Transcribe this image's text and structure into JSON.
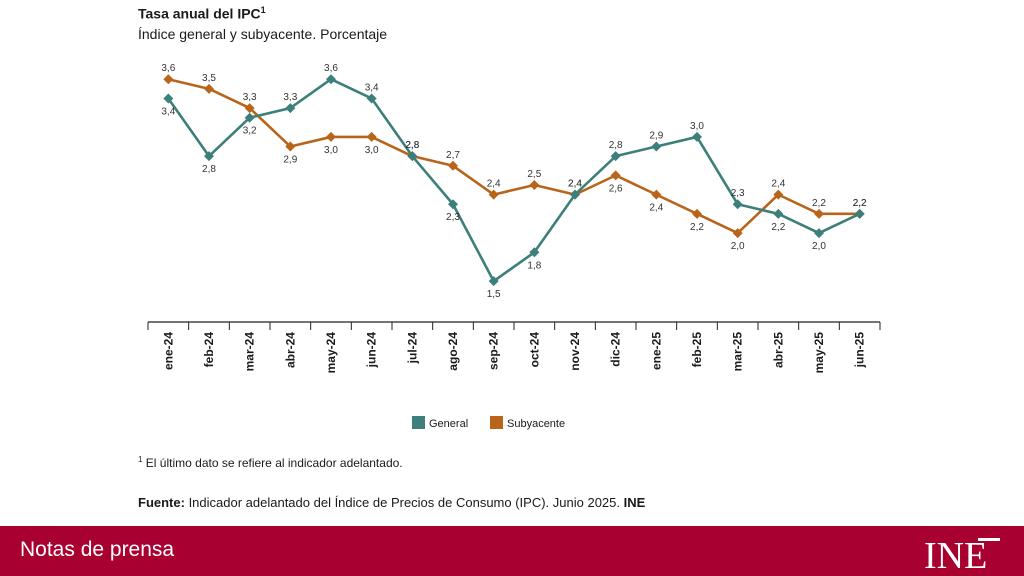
{
  "chart_data": {
    "type": "line",
    "title": "Tasa anual del IPC",
    "title_superscript": "1",
    "subtitle": "Índice general y subyacente. Porcentaje",
    "categories": [
      "ene-24",
      "feb-24",
      "mar-24",
      "abr-24",
      "may-24",
      "jun-24",
      "jul-24",
      "ago-24",
      "sep-24",
      "oct-24",
      "nov-24",
      "dic-24",
      "ene-25",
      "feb-25",
      "mar-25",
      "abr-25",
      "may-25",
      "jun-25"
    ],
    "series": [
      {
        "name": "General",
        "color": "#3d7f7a",
        "marker": "diamond",
        "values": [
          3.4,
          2.8,
          3.2,
          3.3,
          3.6,
          3.4,
          2.8,
          2.3,
          1.5,
          1.8,
          2.4,
          2.8,
          2.9,
          3.0,
          2.3,
          2.2,
          2.0,
          2.2
        ],
        "labels": [
          "3,4",
          "2,8",
          "3,2",
          "3,3",
          "3,6",
          "3,4",
          "2,8",
          "2,3",
          "1,5",
          "1,8",
          "2,4",
          "2,8",
          "2,9",
          "3,0",
          "2,3",
          "2,2",
          "2,0",
          "2,2"
        ]
      },
      {
        "name": "Subyacente",
        "color": "#b8651b",
        "marker": "diamond",
        "values": [
          3.6,
          3.5,
          3.3,
          2.9,
          3.0,
          3.0,
          2.8,
          2.7,
          2.4,
          2.5,
          2.4,
          2.6,
          2.4,
          2.2,
          2.0,
          2.4,
          2.2,
          2.2
        ],
        "labels": [
          "3,6",
          "3,5",
          "3,3",
          "2,9",
          "3,0",
          "3,0",
          "2,8",
          "2,7",
          "2,4",
          "2,5",
          "2,4",
          "2,6",
          "2,4",
          "2,2",
          "2,0",
          "2,4",
          "2,2",
          "2,2"
        ]
      }
    ],
    "ylim": [
      1.2,
      3.8
    ],
    "grid": false,
    "legend_position": "bottom-center"
  },
  "footnote": {
    "marker": "1",
    "text": "El último dato se refiere al indicador adelantado."
  },
  "source": {
    "label": "Fuente:",
    "text": " Indicador adelantado del Índice de Precios de Consumo (IPC).  Junio 2025.",
    "org": "INE"
  },
  "footer": {
    "label": "Notas de prensa",
    "logo_text": "INE"
  }
}
